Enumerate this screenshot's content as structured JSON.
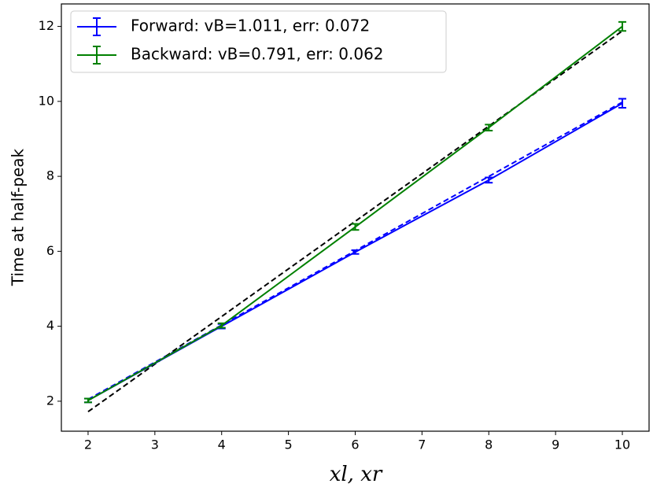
{
  "chart_data": {
    "type": "errorbar-line",
    "xlabel": "xl, xr",
    "ylabel": "Time at half-peak",
    "x": [
      2,
      4,
      6,
      8,
      10
    ],
    "series": [
      {
        "name": "Forward: vB=1.011, err: 0.072",
        "color": "#0000ff",
        "values": [
          2.02,
          4.0,
          5.98,
          7.9,
          9.95
        ],
        "errors": [
          0.05,
          0.06,
          0.05,
          0.07,
          0.12
        ]
      },
      {
        "name": "Backward: vB=0.791, err: 0.062",
        "color": "#008000",
        "values": [
          2.02,
          4.02,
          6.65,
          9.3,
          12.0
        ],
        "errors": [
          0.05,
          0.06,
          0.08,
          0.08,
          0.12
        ]
      }
    ],
    "fits": [
      {
        "color": "#0000ff",
        "x": [
          2,
          10
        ],
        "values": [
          2.05,
          9.98
        ]
      },
      {
        "color": "#000000",
        "x": [
          2,
          10
        ],
        "values": [
          1.72,
          11.88
        ]
      }
    ],
    "xlim": [
      1.6,
      10.4
    ],
    "ylim": [
      1.2,
      12.6
    ],
    "xticks": [
      2,
      3,
      4,
      5,
      6,
      7,
      8,
      9,
      10
    ],
    "yticks": [
      2,
      4,
      6,
      8,
      10,
      12
    ],
    "legend": "upper left"
  }
}
